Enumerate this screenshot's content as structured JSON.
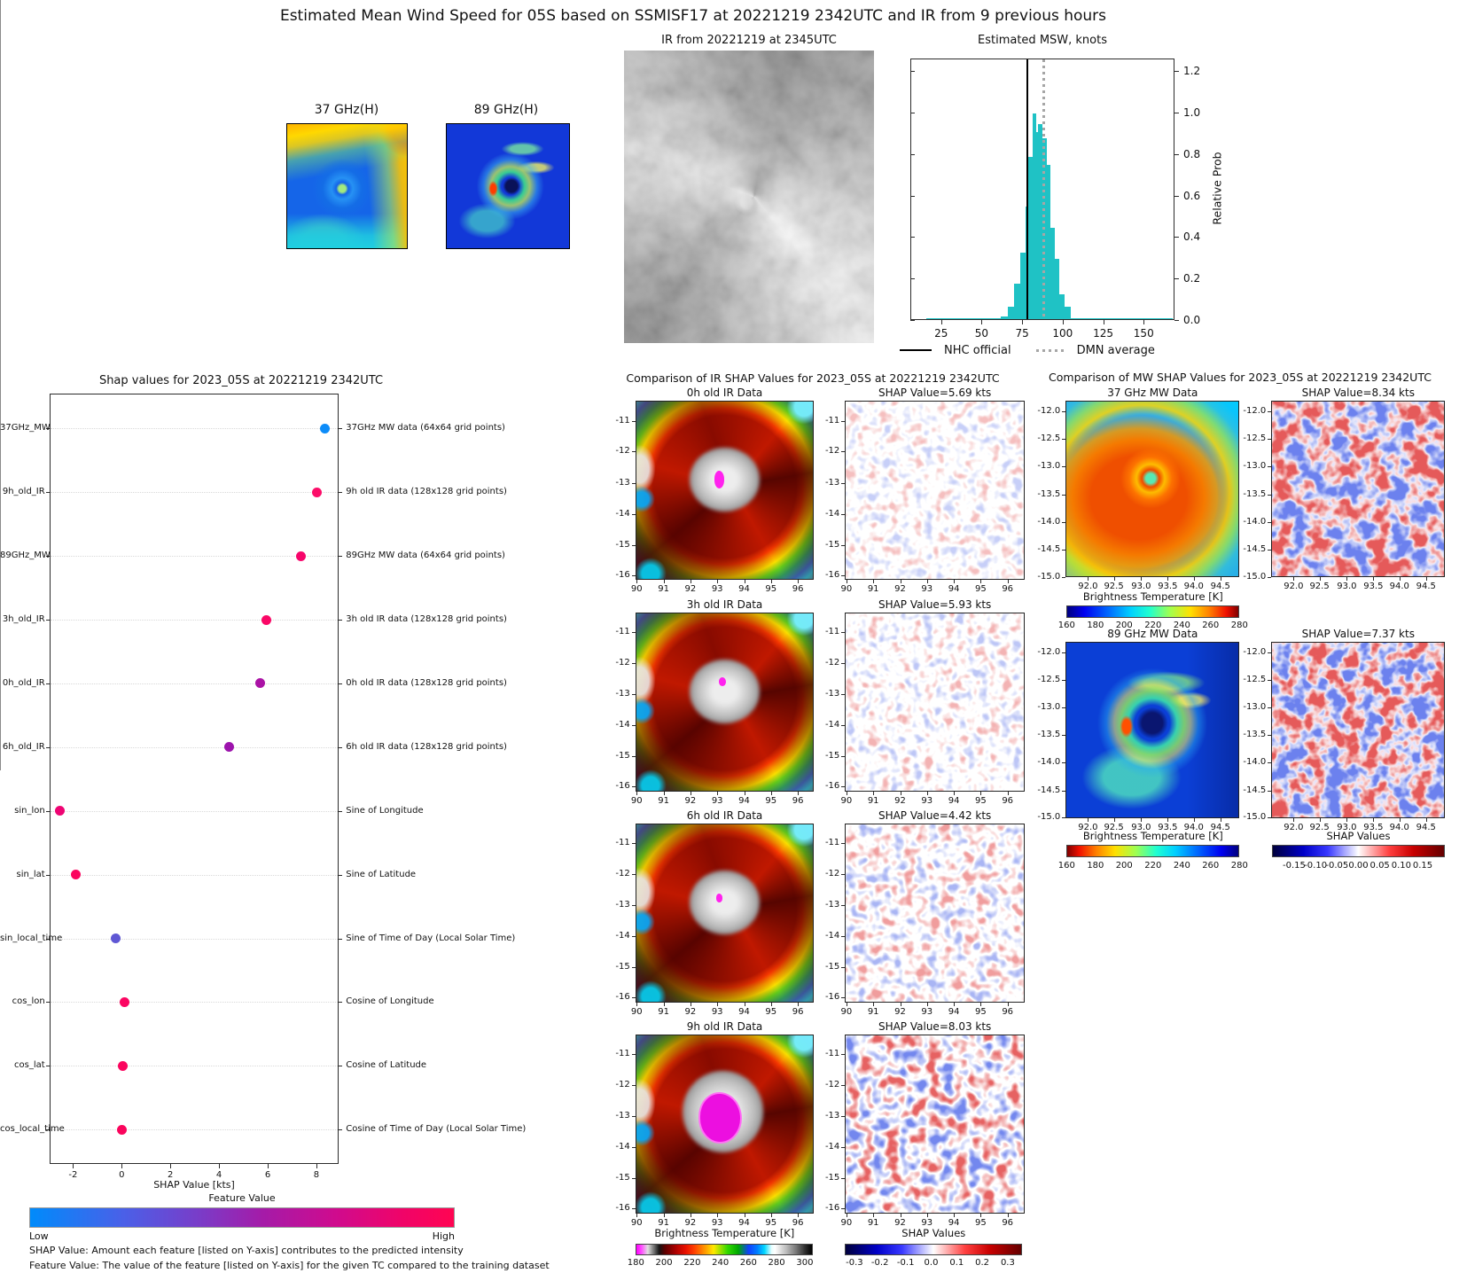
{
  "figure_title": "Estimated Mean Wind Speed for 05S based on SSMISF17 at 20221219 2342UTC and IR from 9 previous hours",
  "top_row": {
    "mw37_title": "37 GHz(H)",
    "mw89_title": "89 GHz(H)",
    "ir_title": "IR from 20221219 at 2345UTC"
  },
  "footnotes": {
    "line1": "SHAP Value: Amount each feature [listed on Y-axis] contributes to the predicted intensity",
    "line2": "Feature Value: The value of the feature [listed on Y-axis] for the given TC compared to the training dataset"
  },
  "chart_data": [
    {
      "id": "estimated_msw_histogram",
      "type": "bar",
      "title": "Estimated MSW, knots",
      "ylabel": "Relative Prob",
      "xlim": [
        6,
        169
      ],
      "ylim": [
        0,
        1.26
      ],
      "xtick_labels": [
        "25",
        "50",
        "75",
        "100",
        "125",
        "150"
      ],
      "xtick_values": [
        25,
        50,
        75,
        100,
        125,
        150
      ],
      "ytick_labels": [
        "0.0",
        "0.2",
        "0.4",
        "0.6",
        "0.8",
        "1.0",
        "1.2"
      ],
      "ytick_values": [
        0,
        0.2,
        0.4,
        0.6,
        0.8,
        1.0,
        1.2
      ],
      "bar_color": "#1fc2c5",
      "bins": [
        [
          16,
          62,
          0.012
        ],
        [
          62,
          66,
          0.02
        ],
        [
          66,
          70,
          0.07
        ],
        [
          70,
          74,
          0.18
        ],
        [
          74,
          77,
          0.33
        ],
        [
          77,
          79,
          0.55
        ],
        [
          79,
          81.5,
          0.79
        ],
        [
          81.5,
          83.5,
          1.0
        ],
        [
          83.5,
          85,
          0.91
        ],
        [
          85,
          87.5,
          0.95
        ],
        [
          87.5,
          90,
          0.88
        ],
        [
          90,
          92.5,
          0.75
        ],
        [
          92.5,
          95,
          0.45
        ],
        [
          95,
          98,
          0.3
        ],
        [
          98,
          101,
          0.13
        ],
        [
          101,
          105,
          0.07
        ],
        [
          105,
          168,
          0.012
        ]
      ],
      "vlines": [
        {
          "x": 77,
          "label": "NHC official",
          "color": "#000000",
          "style": "solid"
        },
        {
          "x": 87,
          "label": "DMN average",
          "color": "#a6a6a6",
          "style": "dotted"
        }
      ]
    },
    {
      "id": "shap_values_plot",
      "type": "scatter",
      "title": "Shap values for 2023_05S at 20221219 2342UTC",
      "xlabel": "SHAP Value [kts]",
      "xlim": [
        -2.97,
        8.93
      ],
      "xtick_labels": [
        "-2",
        "0",
        "2",
        "4",
        "6",
        "8"
      ],
      "xtick_values": [
        -2,
        0,
        2,
        4,
        6,
        8
      ],
      "features": [
        {
          "name": "37GHz_MW",
          "desc": "37GHz MW data (64x64 grid points)",
          "shap": 8.34,
          "dot_color": "#0d8cf9"
        },
        {
          "name": "9h_old_IR",
          "desc": "9h old IR data (128x128 grid points)",
          "shap": 8.03,
          "dot_color": "#fc0d69"
        },
        {
          "name": "89GHz_MW",
          "desc": "89GHz MW data (64x64 grid points)",
          "shap": 7.37,
          "dot_color": "#f7056b"
        },
        {
          "name": "3h_old_IR",
          "desc": "3h old IR data (128x128 grid points)",
          "shap": 5.93,
          "dot_color": "#fa0766"
        },
        {
          "name": "0h_old_IR",
          "desc": "0h old IR data (128x128 grid points)",
          "shap": 5.69,
          "dot_color": "#aa12a5"
        },
        {
          "name": "6h_old_IR",
          "desc": "6h old IR data (128x128 grid points)",
          "shap": 4.42,
          "dot_color": "#9c13ac"
        },
        {
          "name": "sin_lon",
          "desc": "Sine of Longitude",
          "shap": -2.54,
          "dot_color": "#ee0473"
        },
        {
          "name": "sin_lat",
          "desc": "Sine of Latitude",
          "shap": -1.87,
          "dot_color": "#fb055f"
        },
        {
          "name": "sin_local_time",
          "desc": "Sine of Time of Day (Local Solar Time)",
          "shap": -0.25,
          "dot_color": "#5f57d4"
        },
        {
          "name": "cos_lon",
          "desc": "Cosine of Longitude",
          "shap": 0.1,
          "dot_color": "#fb0561"
        },
        {
          "name": "cos_lat",
          "desc": "Cosine of Latitude",
          "shap": 0.05,
          "dot_color": "#fb055e"
        },
        {
          "name": "cos_local_time",
          "desc": "Cosine of Time of Day (Local Solar Time)",
          "shap": 0.02,
          "dot_color": "#fa045c"
        }
      ],
      "colorbar": {
        "title": "Feature Value",
        "low_label": "Low",
        "high_label": "High",
        "left_color": "#008bfb",
        "right_color": "#ff0552"
      }
    },
    {
      "id": "ir_shap_comparison",
      "type": "heatmap",
      "title": "Comparison of IR SHAP Values for 2023_05S at 20221219 2342UTC",
      "rows": [
        {
          "left_title": "0h old IR Data",
          "right_title": "SHAP Value=5.69 kts",
          "shap_kts": 5.69
        },
        {
          "left_title": "3h old IR Data",
          "right_title": "SHAP Value=5.93 kts",
          "shap_kts": 5.93
        },
        {
          "left_title": "6h old IR Data",
          "right_title": "SHAP Value=4.42 kts",
          "shap_kts": 4.42
        },
        {
          "left_title": "9h old IR Data",
          "right_title": "SHAP Value=8.03 kts",
          "shap_kts": 8.03
        }
      ],
      "xtick_labels": [
        "90",
        "91",
        "92",
        "93",
        "94",
        "95",
        "96"
      ],
      "ytick_labels": [
        "-11",
        "-12",
        "-13",
        "-14",
        "-15",
        "-16"
      ],
      "bt_colorbar": {
        "label": "Brightness Temperature [K]",
        "tick_labels": [
          "180",
          "200",
          "220",
          "240",
          "260",
          "280",
          "300"
        ]
      },
      "shap_colorbar": {
        "label": "SHAP Values",
        "tick_labels": [
          "-0.3",
          "-0.2",
          "-0.1",
          "0.0",
          "0.1",
          "0.2",
          "0.3"
        ]
      }
    },
    {
      "id": "mw_shap_comparison",
      "type": "heatmap",
      "title": "Comparison of MW SHAP Values for 2023_05S at 20221219 2342UTC",
      "rows": [
        {
          "left_title": "37 GHz MW Data",
          "right_title": "SHAP Value=8.34 kts",
          "shap_kts": 8.34
        },
        {
          "left_title": "89 GHz MW Data",
          "right_title": "SHAP Value=7.37 kts",
          "shap_kts": 7.37
        }
      ],
      "xtick_labels": [
        "92.0",
        "92.5",
        "93.0",
        "93.5",
        "94.0",
        "94.5"
      ],
      "ytick_labels": [
        "-12.0",
        "-12.5",
        "-13.0",
        "-13.5",
        "-14.0",
        "-14.5",
        "-15.0"
      ],
      "bt_colorbar": {
        "label": "Brightness Temperature [K]",
        "tick_labels": [
          "160",
          "180",
          "200",
          "220",
          "240",
          "260",
          "280"
        ]
      },
      "shap_colorbar": {
        "label": "SHAP Values",
        "tick_labels": [
          "-0.15",
          "-0.10",
          "-0.05",
          "0.00",
          "0.05",
          "0.10",
          "0.15"
        ]
      }
    }
  ]
}
